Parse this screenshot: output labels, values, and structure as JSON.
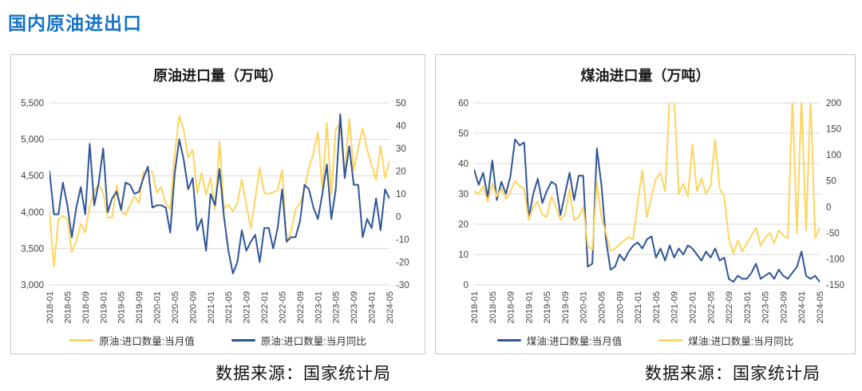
{
  "page": {
    "title": "国内原油进出口",
    "title_color": "#1473C8"
  },
  "footers": {
    "left": "数据来源：国家统计局",
    "right": "数据来源：国家统计局"
  },
  "colors": {
    "yellow": "#FFD45E",
    "blue": "#2F5597",
    "grid": "#d9d9d9"
  },
  "chart_data": [
    {
      "type": "line",
      "title": "原油进口量（万吨）",
      "x": [
        "2018-01",
        "2018-02",
        "2018-03",
        "2018-04",
        "2018-05",
        "2018-06",
        "2018-07",
        "2018-08",
        "2018-09",
        "2018-10",
        "2018-11",
        "2018-12",
        "2019-01",
        "2019-02",
        "2019-03",
        "2019-04",
        "2019-05",
        "2019-06",
        "2019-07",
        "2019-08",
        "2019-09",
        "2019-10",
        "2019-11",
        "2019-12",
        "2020-01",
        "2020-02",
        "2020-03",
        "2020-04",
        "2020-05",
        "2020-06",
        "2020-07",
        "2020-08",
        "2020-09",
        "2020-10",
        "2020-11",
        "2020-12",
        "2021-01",
        "2021-02",
        "2021-03",
        "2021-04",
        "2021-05",
        "2021-06",
        "2021-07",
        "2021-08",
        "2021-09",
        "2021-10",
        "2021-11",
        "2021-12",
        "2022-01",
        "2022-02",
        "2022-03",
        "2022-04",
        "2022-05",
        "2022-06",
        "2022-07",
        "2022-08",
        "2022-09",
        "2022-10",
        "2022-11",
        "2022-12",
        "2023-01",
        "2023-02",
        "2023-03",
        "2023-04",
        "2023-05",
        "2023-06",
        "2023-07",
        "2023-08",
        "2023-09",
        "2023-10",
        "2023-11",
        "2023-12",
        "2024-01",
        "2024-02",
        "2024-03",
        "2024-04",
        "2024-05"
      ],
      "x_tick_labels": [
        "2018-01",
        "2018-05",
        "2018-09",
        "2019-01",
        "2019-05",
        "2019-09",
        "2020-01",
        "2020-05",
        "2020-09",
        "2021-01",
        "2021-05",
        "2021-09",
        "2022-01",
        "2022-05",
        "2022-09",
        "2023-01",
        "2023-05",
        "2023-09",
        "2024-01",
        "2024-05"
      ],
      "left_axis": {
        "min": 3000,
        "max": 5500,
        "ticks": [
          5500,
          5000,
          4500,
          4000,
          3500,
          3000
        ],
        "tick_labels": [
          "5,500",
          "5,000",
          "4,500",
          "4,000",
          "3,500",
          "3,000"
        ]
      },
      "right_axis": {
        "min": -30,
        "max": 50,
        "ticks": [
          50,
          40,
          30,
          20,
          10,
          0,
          -10,
          -20,
          -30
        ],
        "tick_labels": [
          "50",
          "40",
          "30",
          "20",
          "10",
          "0",
          "-10",
          "-20",
          "-30"
        ]
      },
      "series": [
        {
          "name": "原油:进口数量:当月值",
          "axis": "left",
          "color": "#FFD45E",
          "values": [
            4000,
            3250,
            3900,
            3950,
            3900,
            3450,
            3600,
            3840,
            3720,
            4080,
            4290,
            4380,
            4260,
            3920,
            3930,
            4370,
            4020,
            3960,
            4100,
            4220,
            4120,
            4550,
            4570,
            4550,
            4270,
            4340,
            4110,
            4040,
            4800,
            5320,
            5130,
            4750,
            4850,
            4260,
            4540,
            4240,
            4470,
            4040,
            4970,
            4050,
            4100,
            4010,
            4120,
            4450,
            4100,
            3780,
            4180,
            4610,
            4260,
            4250,
            4270,
            4300,
            4580,
            3580,
            3730,
            4040,
            4120,
            4310,
            4610,
            4810,
            5100,
            4300,
            5230,
            4240,
            5140,
            5210,
            4500,
            5280,
            4570,
            4890,
            5150,
            4860,
            4650,
            4440,
            4910,
            4470,
            4700
          ]
        },
        {
          "name": "原油:进口数量:当月同比",
          "axis": "right",
          "color": "#2F5597",
          "values": [
            20,
            1,
            1,
            15,
            5,
            -9,
            4,
            13,
            1,
            32,
            5,
            15,
            30,
            2,
            8,
            11,
            3,
            15,
            14,
            10,
            11,
            17,
            22,
            4,
            5,
            5,
            4,
            -7,
            19,
            34,
            25,
            12,
            17,
            -6,
            -1,
            -15,
            10,
            5,
            21,
            0,
            -15,
            -25,
            -20,
            -6,
            -15,
            -11,
            -8,
            -20,
            -5,
            -5,
            -14,
            -5,
            12,
            -11,
            -9,
            -9,
            -2,
            14,
            12,
            4,
            -1,
            10,
            23,
            -1,
            12,
            45,
            17,
            31,
            14,
            14,
            -9,
            -1,
            -5,
            8,
            -6,
            12,
            8
          ]
        }
      ]
    },
    {
      "type": "line",
      "title": "煤油进口量（万吨）",
      "x": [
        "2018-01",
        "2018-02",
        "2018-03",
        "2018-04",
        "2018-05",
        "2018-06",
        "2018-07",
        "2018-08",
        "2018-09",
        "2018-10",
        "2018-11",
        "2018-12",
        "2019-01",
        "2019-02",
        "2019-03",
        "2019-04",
        "2019-05",
        "2019-06",
        "2019-07",
        "2019-08",
        "2019-09",
        "2019-10",
        "2019-11",
        "2019-12",
        "2020-01",
        "2020-02",
        "2020-03",
        "2020-04",
        "2020-05",
        "2020-06",
        "2020-07",
        "2020-08",
        "2020-09",
        "2020-10",
        "2020-11",
        "2020-12",
        "2021-01",
        "2021-02",
        "2021-03",
        "2021-04",
        "2021-05",
        "2021-06",
        "2021-07",
        "2021-08",
        "2021-09",
        "2021-10",
        "2021-11",
        "2021-12",
        "2022-01",
        "2022-02",
        "2022-03",
        "2022-04",
        "2022-05",
        "2022-06",
        "2022-07",
        "2022-08",
        "2022-09",
        "2022-10",
        "2022-11",
        "2022-12",
        "2023-01",
        "2023-02",
        "2023-03",
        "2023-04",
        "2023-05",
        "2023-06",
        "2023-07",
        "2023-08",
        "2023-09",
        "2023-10",
        "2023-11",
        "2023-12",
        "2024-01",
        "2024-02",
        "2024-03",
        "2024-04",
        "2024-05"
      ],
      "x_tick_labels": [
        "2018-01",
        "2018-05",
        "2018-09",
        "2019-01",
        "2019-05",
        "2019-09",
        "2020-01",
        "2020-05",
        "2020-09",
        "2021-01",
        "2021-05",
        "2021-09",
        "2022-01",
        "2022-05",
        "2022-09",
        "2023-01",
        "2023-05",
        "2023-09",
        "2024-01",
        "2024-05"
      ],
      "left_axis": {
        "min": 0,
        "max": 60,
        "ticks": [
          60,
          50,
          40,
          30,
          20,
          10,
          0
        ],
        "tick_labels": [
          "60",
          "50",
          "40",
          "30",
          "20",
          "10",
          "0"
        ]
      },
      "right_axis": {
        "min": -150,
        "max": 200,
        "ticks": [
          200,
          150,
          100,
          50,
          0,
          -50,
          -100,
          -150
        ],
        "tick_labels": [
          "200",
          "150",
          "100",
          "50",
          "0",
          "-50",
          "-100",
          "-150"
        ]
      },
      "series": [
        {
          "name": "煤油:进口数量:当月值",
          "axis": "left",
          "color": "#2F5597",
          "values": [
            38,
            33,
            37,
            29,
            41,
            28,
            34,
            30,
            36,
            48,
            46,
            47,
            22,
            30,
            35,
            27,
            31,
            34,
            33,
            23,
            30,
            37,
            28,
            36,
            36,
            6,
            7,
            45,
            33,
            15,
            5,
            6,
            10,
            8,
            11,
            13,
            14,
            12,
            15,
            16,
            9,
            12,
            8,
            13,
            9,
            12,
            10,
            13,
            12,
            10,
            8,
            11,
            9,
            12,
            8,
            9,
            2,
            1,
            3,
            2,
            2,
            4,
            7,
            2,
            3,
            4,
            2,
            5,
            3,
            2,
            4,
            6,
            11,
            3,
            2,
            3,
            1
          ]
        },
        {
          "name": "煤油:进口数量:当月同比",
          "axis": "right",
          "color": "#FFD45E",
          "values": [
            30,
            25,
            40,
            10,
            45,
            20,
            35,
            15,
            30,
            50,
            40,
            35,
            -25,
            0,
            10,
            -15,
            -20,
            20,
            0,
            -25,
            -15,
            35,
            -25,
            -20,
            0,
            -75,
            -82,
            48,
            -20,
            -50,
            -85,
            -80,
            -72,
            -65,
            -58,
            -62,
            10,
            70,
            -20,
            20,
            55,
            65,
            30,
            210,
            210,
            25,
            45,
            20,
            120,
            30,
            55,
            25,
            40,
            130,
            35,
            20,
            -60,
            -90,
            -65,
            -85,
            -70,
            -55,
            -40,
            -75,
            -60,
            -50,
            -70,
            -45,
            -55,
            -60,
            210,
            -50,
            210,
            -45,
            210,
            -60,
            -40
          ]
        }
      ]
    }
  ]
}
